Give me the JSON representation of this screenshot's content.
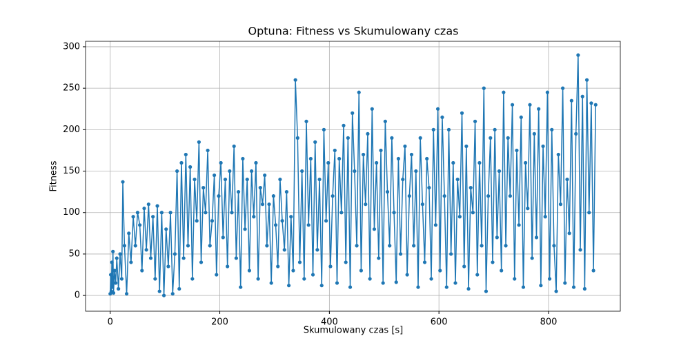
{
  "chart_data": {
    "type": "line",
    "title": "Optuna: Fitness vs Skumulowany czas",
    "x_label": "Skumulowany czas [s]",
    "y_label": "Fitness",
    "color": "#1f77b4",
    "grid": true,
    "xlim": [
      -45,
      931
    ],
    "ylim": [
      -19,
      306.6
    ],
    "xticks": [
      0,
      200,
      400,
      600,
      800
    ],
    "yticks": [
      0,
      50,
      100,
      150,
      200,
      250,
      300
    ],
    "x": [
      0,
      1,
      2,
      3,
      4,
      5,
      6,
      8,
      10,
      12,
      15,
      18,
      21,
      23,
      26,
      30,
      34,
      38,
      42,
      46,
      50,
      54,
      58,
      62,
      66,
      70,
      74,
      78,
      82,
      86,
      90,
      94,
      98,
      102,
      106,
      110,
      114,
      118,
      122,
      126,
      130,
      134,
      138,
      142,
      146,
      150,
      154,
      158,
      162,
      166,
      170,
      174,
      178,
      182,
      186,
      190,
      194,
      198,
      202,
      206,
      210,
      214,
      218,
      222,
      226,
      230,
      234,
      238,
      242,
      246,
      250,
      254,
      258,
      262,
      266,
      270,
      274,
      278,
      282,
      286,
      290,
      294,
      298,
      302,
      306,
      310,
      314,
      318,
      322,
      326,
      330,
      334,
      338,
      342,
      346,
      350,
      354,
      358,
      362,
      366,
      370,
      374,
      378,
      382,
      386,
      390,
      394,
      398,
      402,
      406,
      410,
      414,
      418,
      422,
      426,
      430,
      434,
      438,
      442,
      446,
      450,
      454,
      458,
      462,
      466,
      470,
      474,
      478,
      482,
      486,
      490,
      494,
      498,
      502,
      506,
      510,
      514,
      518,
      522,
      526,
      530,
      534,
      538,
      542,
      546,
      550,
      554,
      558,
      562,
      566,
      570,
      574,
      578,
      582,
      586,
      590,
      594,
      598,
      602,
      606,
      610,
      614,
      618,
      622,
      626,
      630,
      634,
      638,
      642,
      646,
      650,
      654,
      658,
      662,
      666,
      670,
      674,
      678,
      682,
      686,
      690,
      694,
      698,
      702,
      706,
      710,
      714,
      718,
      722,
      726,
      730,
      734,
      738,
      742,
      746,
      750,
      754,
      758,
      762,
      766,
      770,
      774,
      778,
      782,
      786,
      790,
      794,
      798,
      802,
      806,
      810,
      814,
      818,
      822,
      826,
      830,
      834,
      838,
      842,
      846,
      850,
      854,
      858,
      862,
      866,
      870,
      874,
      878,
      882,
      886
    ],
    "values": [
      2,
      25,
      5,
      40,
      10,
      53,
      3,
      30,
      15,
      45,
      8,
      50,
      20,
      137,
      60,
      2,
      75,
      40,
      95,
      60,
      100,
      85,
      30,
      105,
      55,
      110,
      45,
      95,
      20,
      108,
      5,
      100,
      0,
      80,
      35,
      100,
      2,
      50,
      150,
      8,
      160,
      45,
      170,
      60,
      155,
      20,
      140,
      90,
      185,
      40,
      130,
      100,
      175,
      60,
      90,
      145,
      25,
      120,
      160,
      70,
      140,
      35,
      150,
      100,
      180,
      45,
      125,
      10,
      165,
      80,
      140,
      30,
      150,
      95,
      160,
      20,
      130,
      110,
      145,
      60,
      110,
      15,
      120,
      85,
      35,
      140,
      90,
      55,
      125,
      12,
      95,
      30,
      260,
      190,
      40,
      150,
      20,
      210,
      85,
      165,
      25,
      185,
      55,
      140,
      12,
      200,
      90,
      160,
      35,
      120,
      175,
      15,
      165,
      100,
      205,
      40,
      190,
      10,
      220,
      150,
      60,
      245,
      30,
      170,
      110,
      195,
      20,
      225,
      80,
      160,
      45,
      175,
      15,
      210,
      125,
      60,
      190,
      100,
      16,
      165,
      50,
      140,
      180,
      25,
      120,
      170,
      60,
      150,
      10,
      190,
      110,
      40,
      165,
      130,
      20,
      200,
      85,
      225,
      30,
      215,
      120,
      10,
      200,
      50,
      160,
      15,
      140,
      95,
      220,
      35,
      180,
      8,
      130,
      100,
      210,
      25,
      160,
      60,
      250,
      5,
      120,
      190,
      40,
      200,
      70,
      150,
      30,
      245,
      60,
      190,
      120,
      230,
      20,
      175,
      85,
      215,
      10,
      160,
      105,
      230,
      45,
      195,
      70,
      225,
      12,
      180,
      95,
      245,
      20,
      200,
      60,
      5,
      170,
      110,
      250,
      15,
      140,
      75,
      235,
      10,
      195,
      290,
      55,
      240,
      8,
      260,
      100,
      232,
      30,
      230
    ]
  }
}
